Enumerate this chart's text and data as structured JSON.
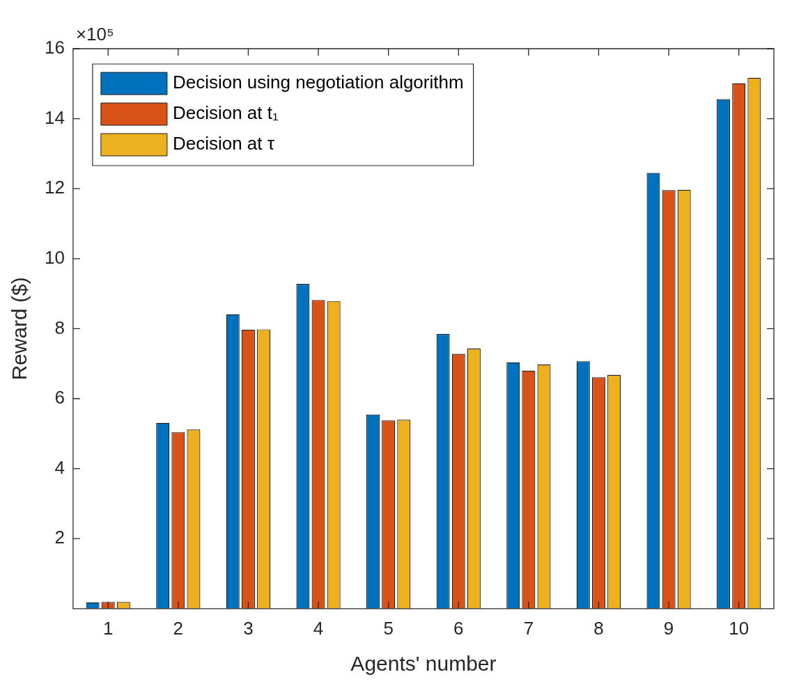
{
  "chart_data": {
    "type": "bar",
    "xlabel": "Agents' number",
    "ylabel": "Reward ($)",
    "categories": [
      "1",
      "2",
      "3",
      "4",
      "5",
      "6",
      "7",
      "8",
      "9",
      "10"
    ],
    "series": [
      {
        "name": "Decision using negotiation algorithm",
        "color": "#0072bd",
        "values": [
          0.18,
          5.31,
          8.41,
          9.28,
          5.55,
          7.85,
          7.04,
          7.07,
          12.45,
          14.56
        ]
      },
      {
        "name": "Decision at t₁",
        "color": "#d95319",
        "values": [
          0.19,
          5.04,
          7.97,
          8.82,
          5.38,
          7.28,
          6.8,
          6.61,
          11.96,
          15.01
        ]
      },
      {
        "name": "Decision at τ",
        "color": "#edb120",
        "values": [
          0.19,
          5.12,
          7.98,
          8.79,
          5.4,
          7.43,
          6.98,
          6.68,
          11.97,
          15.17
        ]
      }
    ],
    "ylim": [
      0,
      16
    ],
    "yticks": [
      2,
      4,
      6,
      8,
      10,
      12,
      14,
      16
    ],
    "annotations": [
      "×10⁵"
    ],
    "grid": false,
    "legend": "top left"
  }
}
